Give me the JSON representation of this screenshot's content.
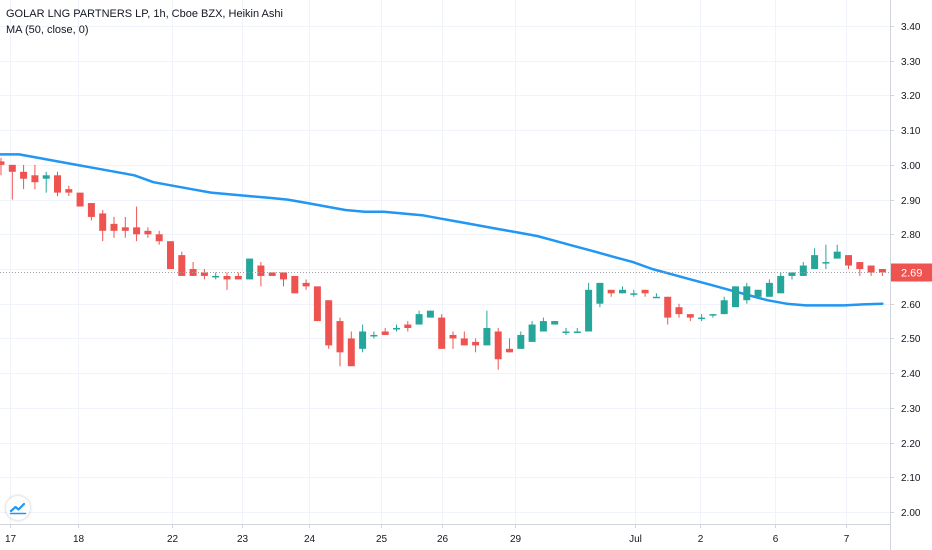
{
  "legend": {
    "title": "GOLAR LNG PARTNERS LP, 1h, Cboe BZX, Heikin Ashi",
    "indicator": "MA (50, close, 0)"
  },
  "chart_data": {
    "type": "candlestick",
    "title": "GOLAR LNG PARTNERS LP, 1h, Cboe BZX, Heikin Ashi",
    "ylim": [
      1.96,
      3.46
    ],
    "y_ticks": [
      "3.40",
      "3.30",
      "3.20",
      "3.10",
      "3.00",
      "2.90",
      "2.80",
      "2.70",
      "2.60",
      "2.50",
      "2.40",
      "2.30",
      "2.20",
      "2.10",
      "2.00"
    ],
    "x_ticks": [
      {
        "label": "17",
        "pos": 0
      },
      {
        "label": "18",
        "pos": 6
      },
      {
        "label": "22",
        "pos": 14.3
      },
      {
        "label": "23",
        "pos": 20.5
      },
      {
        "label": "24",
        "pos": 26.5
      },
      {
        "label": "25",
        "pos": 32.8
      },
      {
        "label": "26",
        "pos": 38.2
      },
      {
        "label": "29",
        "pos": 44.7
      },
      {
        "label": "Jul",
        "pos": 55.3
      },
      {
        "label": "2",
        "pos": 61.1
      },
      {
        "label": "6",
        "pos": 67.7
      },
      {
        "label": "7",
        "pos": 74
      }
    ],
    "current_price": {
      "value": 2.69,
      "label": "2.69",
      "color": "#ef5350"
    },
    "colors": {
      "up": "#26a69a",
      "down": "#ef5350",
      "ma": "#2196f3"
    },
    "candles": [
      [
        3.01,
        3.0,
        3.02,
        2.97
      ],
      [
        3.0,
        2.98,
        3.0,
        2.9
      ],
      [
        2.98,
        2.96,
        3.0,
        2.93
      ],
      [
        2.97,
        2.95,
        3.0,
        2.93
      ],
      [
        2.96,
        2.97,
        2.98,
        2.92
      ],
      [
        2.97,
        2.92,
        2.98,
        2.91
      ],
      [
        2.93,
        2.92,
        2.94,
        2.91
      ],
      [
        2.92,
        2.88,
        2.92,
        2.88
      ],
      [
        2.89,
        2.85,
        2.89,
        2.84
      ],
      [
        2.86,
        2.81,
        2.87,
        2.78
      ],
      [
        2.83,
        2.81,
        2.85,
        2.79
      ],
      [
        2.82,
        2.81,
        2.85,
        2.79
      ],
      [
        2.82,
        2.8,
        2.88,
        2.78
      ],
      [
        2.81,
        2.8,
        2.82,
        2.79
      ],
      [
        2.8,
        2.78,
        2.81,
        2.77
      ],
      [
        2.78,
        2.7,
        2.78,
        2.7
      ],
      [
        2.74,
        2.68,
        2.75,
        2.68
      ],
      [
        2.7,
        2.68,
        2.72,
        2.68
      ],
      [
        2.69,
        2.68,
        2.7,
        2.67
      ],
      [
        2.68,
        2.68,
        2.69,
        2.67
      ],
      [
        2.68,
        2.67,
        2.69,
        2.64
      ],
      [
        2.68,
        2.67,
        2.69,
        2.67
      ],
      [
        2.67,
        2.73,
        2.73,
        2.67
      ],
      [
        2.71,
        2.68,
        2.72,
        2.65
      ],
      [
        2.69,
        2.68,
        2.69,
        2.68
      ],
      [
        2.69,
        2.67,
        2.69,
        2.65
      ],
      [
        2.68,
        2.63,
        2.68,
        2.63
      ],
      [
        2.66,
        2.65,
        2.67,
        2.64
      ],
      [
        2.65,
        2.55,
        2.65,
        2.55
      ],
      [
        2.61,
        2.48,
        2.61,
        2.47
      ],
      [
        2.55,
        2.46,
        2.56,
        2.42
      ],
      [
        2.5,
        2.42,
        2.52,
        2.42
      ],
      [
        2.47,
        2.52,
        2.54,
        2.46
      ],
      [
        2.51,
        2.51,
        2.52,
        2.5
      ],
      [
        2.52,
        2.51,
        2.53,
        2.51
      ],
      [
        2.53,
        2.53,
        2.54,
        2.52
      ],
      [
        2.54,
        2.53,
        2.55,
        2.52
      ],
      [
        2.54,
        2.57,
        2.58,
        2.54
      ],
      [
        2.56,
        2.58,
        2.58,
        2.56
      ],
      [
        2.56,
        2.47,
        2.57,
        2.47
      ],
      [
        2.51,
        2.5,
        2.52,
        2.47
      ],
      [
        2.5,
        2.48,
        2.52,
        2.48
      ],
      [
        2.49,
        2.48,
        2.5,
        2.46
      ],
      [
        2.48,
        2.53,
        2.58,
        2.48
      ],
      [
        2.52,
        2.44,
        2.53,
        2.41
      ],
      [
        2.47,
        2.46,
        2.5,
        2.46
      ],
      [
        2.47,
        2.51,
        2.52,
        2.47
      ],
      [
        2.49,
        2.54,
        2.55,
        2.49
      ],
      [
        2.52,
        2.55,
        2.56,
        2.52
      ],
      [
        2.54,
        2.55,
        2.55,
        2.54
      ],
      [
        2.52,
        2.52,
        2.53,
        2.51
      ],
      [
        2.52,
        2.52,
        2.53,
        2.52
      ],
      [
        2.52,
        2.64,
        2.66,
        2.52
      ],
      [
        2.6,
        2.66,
        2.66,
        2.59
      ],
      [
        2.64,
        2.63,
        2.64,
        2.62
      ],
      [
        2.63,
        2.64,
        2.65,
        2.63
      ],
      [
        2.63,
        2.63,
        2.64,
        2.62
      ],
      [
        2.64,
        2.63,
        2.64,
        2.62
      ],
      [
        2.62,
        2.62,
        2.63,
        2.62
      ],
      [
        2.62,
        2.56,
        2.62,
        2.54
      ],
      [
        2.59,
        2.57,
        2.6,
        2.56
      ],
      [
        2.57,
        2.56,
        2.57,
        2.55
      ],
      [
        2.56,
        2.56,
        2.57,
        2.55
      ],
      [
        2.57,
        2.57,
        2.57,
        2.56
      ],
      [
        2.57,
        2.61,
        2.62,
        2.57
      ],
      [
        2.59,
        2.65,
        2.65,
        2.59
      ],
      [
        2.61,
        2.65,
        2.66,
        2.6
      ],
      [
        2.62,
        2.64,
        2.64,
        2.62
      ],
      [
        2.62,
        2.66,
        2.67,
        2.62
      ],
      [
        2.63,
        2.68,
        2.69,
        2.63
      ],
      [
        2.68,
        2.69,
        2.69,
        2.67
      ],
      [
        2.68,
        2.71,
        2.72,
        2.68
      ],
      [
        2.7,
        2.74,
        2.76,
        2.7
      ],
      [
        2.72,
        2.72,
        2.77,
        2.7
      ],
      [
        2.73,
        2.75,
        2.77,
        2.73
      ],
      [
        2.74,
        2.71,
        2.74,
        2.7
      ],
      [
        2.72,
        2.7,
        2.72,
        2.68
      ],
      [
        2.71,
        2.69,
        2.71,
        2.68
      ],
      [
        2.7,
        2.69,
        2.7,
        2.68
      ]
    ],
    "ma": [
      3.03,
      3.03,
      3.02,
      3.01,
      3.0,
      2.99,
      2.98,
      2.97,
      2.95,
      2.94,
      2.93,
      2.92,
      2.915,
      2.91,
      2.905,
      2.9,
      2.89,
      2.88,
      2.87,
      2.865,
      2.865,
      2.86,
      2.855,
      2.845,
      2.835,
      2.825,
      2.815,
      2.805,
      2.795,
      2.78,
      2.765,
      2.75,
      2.735,
      2.72,
      2.7,
      2.685,
      2.67,
      2.655,
      2.64,
      2.625,
      2.61,
      2.6,
      2.595,
      2.595,
      2.595,
      2.598,
      2.6
    ]
  }
}
